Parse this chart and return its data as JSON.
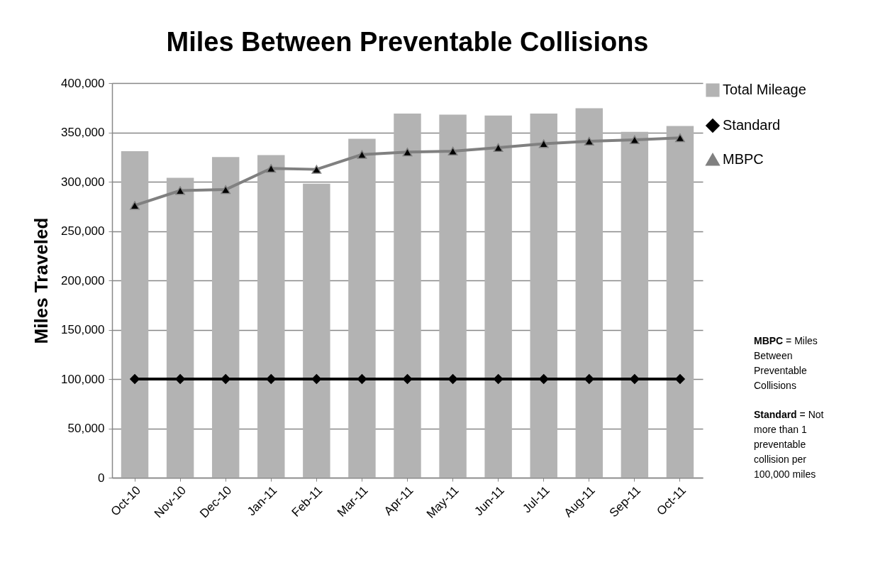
{
  "chart_data": {
    "type": "bar",
    "title": "Miles Between Preventable Collisions",
    "ylabel": "Miles Traveled",
    "categories": [
      "Oct-10",
      "Nov-10",
      "Dec-10",
      "Jan-11",
      "Feb-11",
      "Mar-11",
      "Apr-11",
      "May-11",
      "Jun-11",
      "Jul-11",
      "Aug-11",
      "Sep-11",
      "Oct-11"
    ],
    "series": [
      {
        "name": "Total Mileage",
        "color": "#b3b3b3",
        "values": [
          331000,
          304000,
          325000,
          327000,
          298000,
          343500,
          369000,
          368000,
          367000,
          369000,
          374500,
          350500,
          356500
        ]
      },
      {
        "name": "Standard",
        "type": "line",
        "color": "#000000",
        "marker": "diamond",
        "values": [
          100000,
          100000,
          100000,
          100000,
          100000,
          100000,
          100000,
          100000,
          100000,
          100000,
          100000,
          100000,
          100000
        ]
      },
      {
        "name": "MBPC",
        "type": "line",
        "color": "#808080",
        "marker": "triangle",
        "values": [
          276000,
          291000,
          292000,
          313500,
          312500,
          327500,
          330000,
          331000,
          334500,
          338500,
          341000,
          342500,
          344500
        ]
      }
    ],
    "ylim": [
      0,
      400000
    ],
    "yticks": [
      0,
      {
        "value": 50000,
        "label": "50,000"
      },
      {
        "value": 100000,
        "label": "100,000"
      },
      {
        "value": 150000,
        "label": "150,000"
      },
      {
        "value": 200000,
        "label": "200,000"
      },
      {
        "value": 250000,
        "label": "250,000"
      },
      {
        "value": 300000,
        "label": "300,000"
      },
      {
        "value": 350000,
        "label": "350,000"
      },
      {
        "value": 400000,
        "label": "400,000"
      }
    ],
    "grid": "y",
    "legend": "right",
    "annotations": [
      "MBPC = Miles Between Preventable Collisions",
      "Standard = Not more than 1 preventable collision per 100,000 miles"
    ]
  }
}
